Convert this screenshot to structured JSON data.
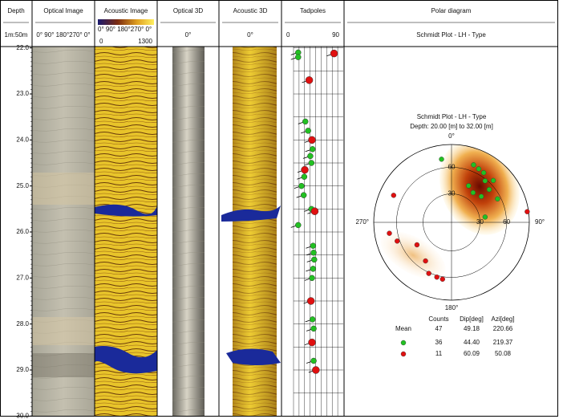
{
  "tracks": [
    {
      "title": "Depth",
      "subtitle": "1m:50m"
    },
    {
      "title": "Optical Image",
      "subtitle": "0° 90° 180°270° 0°"
    },
    {
      "title": "Acoustic Image",
      "subtitle": "0° 90° 180°270° 0°",
      "scale": [
        0,
        1300
      ]
    },
    {
      "title": "Optical 3D",
      "subtitle": "0°"
    },
    {
      "title": "Acoustic 3D",
      "subtitle": "0°"
    },
    {
      "title": "Tadpoles",
      "scale": [
        0,
        90
      ]
    },
    {
      "title": "Polar diagram",
      "subtitle": "Schmidt Plot - LH - Type"
    }
  ],
  "depth_lim": [
    22,
    30
  ],
  "depth_ticks": [
    {
      "value": 22,
      "label": "22.0"
    },
    {
      "value": 23,
      "label": "23.0"
    },
    {
      "value": 24,
      "label": "24.0"
    },
    {
      "value": 25,
      "label": "25.0"
    },
    {
      "value": 26,
      "label": "26.0"
    },
    {
      "value": 27,
      "label": "27.0"
    },
    {
      "value": 28,
      "label": "28.0"
    },
    {
      "value": 29,
      "label": "29.0"
    },
    {
      "value": 30,
      "label": "30.0"
    }
  ],
  "tadpoles": [
    {
      "depth": 22.1,
      "dip": 20,
      "color": "#22c022"
    },
    {
      "depth": 22.2,
      "dip": 20,
      "color": "#22c022"
    },
    {
      "depth": 22.12,
      "dip": 85,
      "color": "#e01010"
    },
    {
      "depth": 22.7,
      "dip": 40,
      "color": "#e01010"
    },
    {
      "depth": 23.6,
      "dip": 33,
      "color": "#22c022"
    },
    {
      "depth": 23.8,
      "dip": 38,
      "color": "#22c022"
    },
    {
      "depth": 24.0,
      "dip": 45,
      "color": "#e01010"
    },
    {
      "depth": 24.2,
      "dip": 46,
      "color": "#22c022"
    },
    {
      "depth": 24.35,
      "dip": 42,
      "color": "#22c022"
    },
    {
      "depth": 24.5,
      "dip": 44,
      "color": "#22c022"
    },
    {
      "depth": 24.65,
      "dip": 32,
      "color": "#e01010"
    },
    {
      "depth": 24.8,
      "dip": 31,
      "color": "#22c022"
    },
    {
      "depth": 25.0,
      "dip": 26,
      "color": "#22c022"
    },
    {
      "depth": 25.2,
      "dip": 30,
      "color": "#22c022"
    },
    {
      "depth": 25.5,
      "dip": 44,
      "color": "#22c022"
    },
    {
      "depth": 25.55,
      "dip": 50,
      "color": "#e01010"
    },
    {
      "depth": 25.85,
      "dip": 20,
      "color": "#22c022"
    },
    {
      "depth": 26.3,
      "dip": 47,
      "color": "#22c022"
    },
    {
      "depth": 26.45,
      "dip": 48,
      "color": "#22c022"
    },
    {
      "depth": 26.6,
      "dip": 49,
      "color": "#22c022"
    },
    {
      "depth": 26.8,
      "dip": 47,
      "color": "#22c022"
    },
    {
      "depth": 27.0,
      "dip": 45,
      "color": "#22c022"
    },
    {
      "depth": 27.5,
      "dip": 43,
      "color": "#e01010"
    },
    {
      "depth": 27.9,
      "dip": 46,
      "color": "#22c022"
    },
    {
      "depth": 28.1,
      "dip": 48,
      "color": "#22c022"
    },
    {
      "depth": 28.4,
      "dip": 45,
      "color": "#e01010"
    },
    {
      "depth": 28.8,
      "dip": 48,
      "color": "#22c022"
    },
    {
      "depth": 29.0,
      "dip": 52,
      "color": "#e01010"
    }
  ],
  "polar": {
    "title": "Schmidt Plot - LH - Type",
    "subtitle": "Depth: 20.00 [m] to 32.00 [m]",
    "directions": [
      "0°",
      "90°",
      "180°",
      "270°"
    ],
    "rings": [
      30,
      60
    ],
    "poles": [
      {
        "dip": 68,
        "azimuth": 21,
        "color": "#22c022"
      },
      {
        "dip": 65,
        "azimuth": 33,
        "color": "#22c022"
      },
      {
        "dip": 54,
        "azimuth": 49,
        "color": "#22c022"
      },
      {
        "dip": 42,
        "azimuth": 49,
        "color": "#22c022"
      },
      {
        "dip": 39,
        "azimuth": 36,
        "color": "#22c022"
      },
      {
        "dip": 56,
        "azimuth": 63,
        "color": "#22c022"
      },
      {
        "dip": 58,
        "azimuth": 39,
        "color": "#22c022"
      },
      {
        "dip": 43,
        "azimuth": 25,
        "color": "#22c022"
      },
      {
        "dip": 66,
        "azimuth": 27,
        "color": "#22c022"
      },
      {
        "dip": 65,
        "azimuth": 45,
        "color": "#22c022"
      },
      {
        "dip": 36,
        "azimuth": 81,
        "color": "#22c022"
      },
      {
        "dip": 71,
        "azimuth": 351,
        "color": "#22c022"
      },
      {
        "dip": 71,
        "azimuth": 295,
        "color": "#e01010"
      },
      {
        "dip": 88,
        "azimuth": 82,
        "color": "#e01010"
      },
      {
        "dip": 70,
        "azimuth": 260,
        "color": "#e01010"
      },
      {
        "dip": 63,
        "azimuth": 251,
        "color": "#e01010"
      },
      {
        "dip": 50,
        "azimuth": 214,
        "color": "#e01010"
      },
      {
        "dip": 61,
        "azimuth": 204,
        "color": "#e01010"
      },
      {
        "dip": 62,
        "azimuth": 195,
        "color": "#e01010"
      },
      {
        "dip": 63,
        "azimuth": 189,
        "color": "#e01010"
      },
      {
        "dip": 44,
        "azimuth": 237,
        "color": "#e01010"
      }
    ],
    "stats": {
      "headers": [
        "Counts",
        "Dip[deg]",
        "Azi[deg]"
      ],
      "rows": [
        {
          "label": "Mean",
          "cells": [
            "47",
            "49.18",
            "220.66"
          ]
        },
        {
          "color": "#22c022",
          "cells": [
            "36",
            "44.40",
            "219.37"
          ]
        },
        {
          "color": "#e01010",
          "cells": [
            "11",
            "60.09",
            "50.08"
          ]
        }
      ]
    }
  }
}
